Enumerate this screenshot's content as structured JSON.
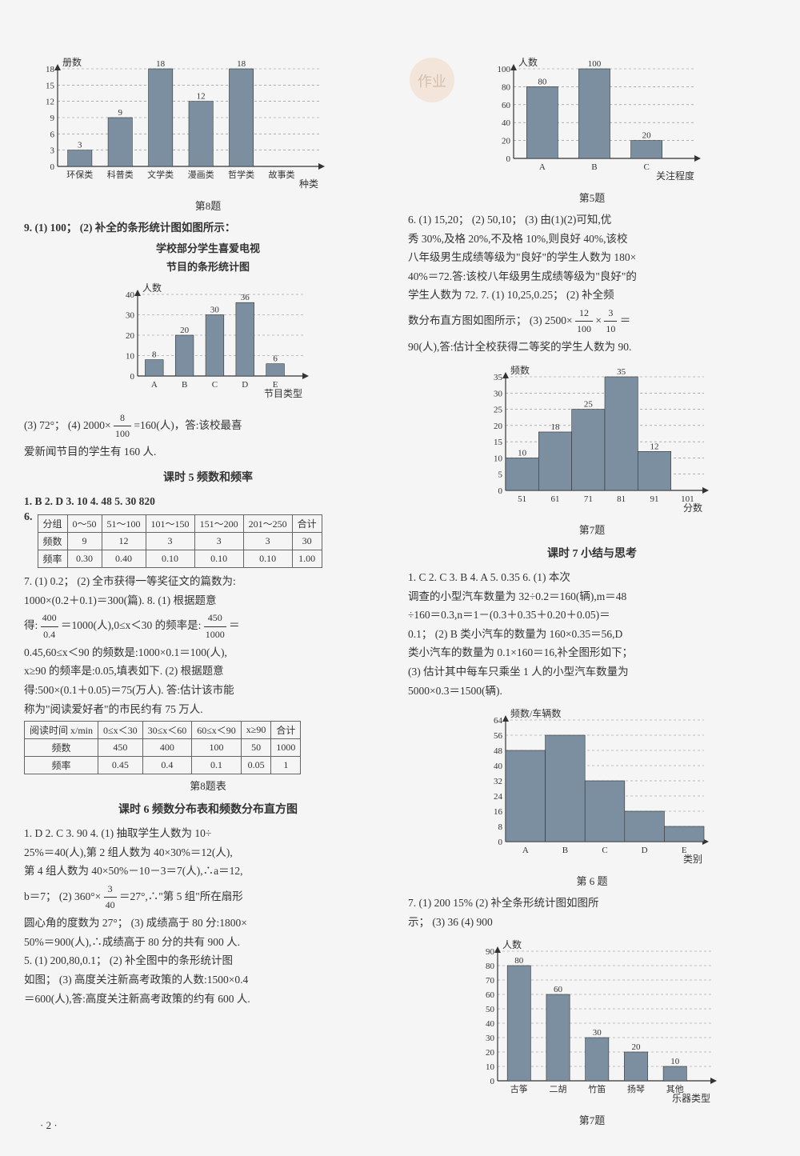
{
  "left": {
    "chart8": {
      "type": "bar",
      "categories": [
        "环保类",
        "科普类",
        "文学类",
        "漫画类",
        "哲学类",
        "故事类"
      ],
      "x_axis_suffix": "种类",
      "values": [
        3,
        9,
        18,
        12,
        18,
        null
      ],
      "value_labels": [
        "3",
        "9",
        "18",
        "12",
        "18",
        ""
      ],
      "yticks": [
        0,
        3,
        6,
        9,
        12,
        15,
        18
      ],
      "y_label": "册数",
      "bar_color": "#7b8fa0",
      "grid_color": "#888",
      "caption": "第8题"
    },
    "q9_line1": "9. (1) 100；  (2) 补全的条形统计图如图所示：",
    "q9_chart_title1": "学校部分学生喜爱电视",
    "q9_chart_title2": "节目的条形统计图",
    "chart9": {
      "type": "bar",
      "categories": [
        "A",
        "B",
        "C",
        "D",
        "E"
      ],
      "x_axis_suffix": "节目类型",
      "values": [
        8,
        20,
        30,
        36,
        6
      ],
      "value_labels": [
        "8",
        "20",
        "30",
        "36",
        "6"
      ],
      "yticks": [
        0,
        10,
        20,
        30,
        40
      ],
      "y_label": "人数",
      "bar_color": "#7b8fa0",
      "grid_color": "#888"
    },
    "q9_line2_a": "(3) 72°；  (4) 2000×",
    "q9_frac": {
      "num": "8",
      "den": "100"
    },
    "q9_line2_b": "=160(人)，答:该校最喜",
    "q9_line3": "爱新闻节目的学生有 160 人.",
    "section5_title": "课时 5   频数和频率",
    "s5_answers": "1. B  2. D  3. 10  4. 48  5. 30   820",
    "s5_q6_label": "6.",
    "table6": {
      "headers": [
        "分组",
        "0～50",
        "51～100",
        "101～150",
        "151～200",
        "201～250",
        "合计"
      ],
      "rows": [
        [
          "频数",
          "9",
          "12",
          "3",
          "3",
          "3",
          "30"
        ],
        [
          "频率",
          "0.30",
          "0.40",
          "0.10",
          "0.10",
          "0.10",
          "1.00"
        ]
      ]
    },
    "s5_q7_l1": "7. (1) 0.2；  (2) 全市获得一等奖征文的篇数为:",
    "s5_q7_l2": "1000×(0.2＋0.1)＝300(篇).  8. (1) 根据题意",
    "s5_q7_l3a": "得:",
    "s5_q7_frac1": {
      "num": "400",
      "den": "0.4"
    },
    "s5_q7_l3b": "＝1000(人),0≤x＜30 的频率是:",
    "s5_q7_frac2": {
      "num": "450",
      "den": "1000"
    },
    "s5_q7_l3c": "＝",
    "s5_q7_l4": "0.45,60≤x＜90 的频数是:1000×0.1＝100(人),",
    "s5_q7_l5": "x≥90 的频率是:0.05,填表如下.  (2) 根据题意",
    "s5_q7_l6": "得:500×(0.1＋0.05)＝75(万人). 答:估计该市能",
    "s5_q7_l7": "称为\"阅读爱好者\"的市民约有 75 万人.",
    "table8": {
      "headers": [
        "阅读时间 x/min",
        "0≤x＜30",
        "30≤x＜60",
        "60≤x＜90",
        "x≥90",
        "合计"
      ],
      "rows": [
        [
          "频数",
          "450",
          "400",
          "100",
          "50",
          "1000"
        ],
        [
          "频率",
          "0.45",
          "0.4",
          "0.1",
          "0.05",
          "1"
        ]
      ],
      "caption": "第8题表"
    },
    "section6_title": "课时 6   频数分布表和频数分布直方图",
    "s6_l1": "1. D  2. C  3. 90  4. (1) 抽取学生人数为 10÷",
    "s6_l2": "25%＝40(人),第 2 组人数为 40×30%＝12(人),",
    "s6_l3": "第 4 组人数为 40×50%－10－3＝7(人),∴a＝12,",
    "s6_l4a": "b＝7；  (2) 360°×",
    "s6_frac": {
      "num": "3",
      "den": "40"
    },
    "s6_l4b": "＝27°,∴\"第 5 组\"所在扇形",
    "s6_l5": "圆心角的度数为 27°；  (3) 成绩高于 80 分:1800×",
    "s6_l6": "50%＝900(人),∴成绩高于 80 分的共有 900 人.",
    "s6_l7": "5. (1) 200,80,0.1；  (2) 补全图中的条形统计图",
    "s6_l8": "如图；  (3) 高度关注新高考政策的人数:1500×0.4",
    "s6_l9": "＝600(人),答:高度关注新高考政策的约有 600 人."
  },
  "right": {
    "chart5": {
      "type": "bar",
      "categories": [
        "A",
        "B",
        "C"
      ],
      "x_axis_suffix": "关注程度",
      "values": [
        80,
        100,
        20
      ],
      "value_labels": [
        "80",
        "100",
        "20"
      ],
      "yticks": [
        0,
        20,
        40,
        60,
        80,
        100
      ],
      "y_label": "人数",
      "bar_color": "#7b8fa0",
      "grid_color": "#888",
      "caption": "第5题"
    },
    "r_l1": "6. (1) 15,20；  (2) 50,10；  (3) 由(1)(2)可知,优",
    "r_l2": "秀 30%,及格 20%,不及格 10%,则良好 40%,该校",
    "r_l3": "八年级男生成绩等级为\"良好\"的学生人数为 180×",
    "r_l4": "40%＝72.答:该校八年级男生成绩等级为\"良好\"的",
    "r_l5": "学生人数为 72.  7. (1) 10,25,0.25；  (2) 补全频",
    "r_l6a": "数分布直方图如图所示；  (3) 2500×",
    "r_frac1": {
      "num": "12",
      "den": "100"
    },
    "r_l6b": "×",
    "r_frac2": {
      "num": "3",
      "den": "10"
    },
    "r_l6c": "＝",
    "r_l7": "90(人),答:估计全校获得二等奖的学生人数为 90.",
    "chart7": {
      "type": "bar",
      "categories": [
        "51",
        "61",
        "71",
        "81",
        "91",
        "101"
      ],
      "x_axis_suffix": "分数",
      "values": [
        10,
        18,
        25,
        35,
        12,
        null
      ],
      "value_labels": [
        "10",
        "18",
        "25",
        "35",
        "12",
        ""
      ],
      "yticks": [
        0,
        5,
        10,
        15,
        20,
        25,
        30,
        35
      ],
      "y_label": "频数",
      "bar_color": "#7b8fa0",
      "grid_color": "#888",
      "caption": "第7题",
      "histogram": true
    },
    "section7_title": "课时 7   小结与思考",
    "s7_l1": "1. C  2. C  3. B  4. A  5. 0.35  6. (1) 本次",
    "s7_l2": "调查的小型汽车数量为 32÷0.2＝160(辆),m＝48",
    "s7_l3": "÷160＝0.3,n＝1－(0.3＋0.35＋0.20＋0.05)＝",
    "s7_l4": "0.1；  (2) B 类小汽车的数量为 160×0.35＝56,D",
    "s7_l5": "类小汽车的数量为 0.1×160＝16,补全图形如下；",
    "s7_l6": "(3) 估计其中每车只乘坐 1 人的小型汽车数量为",
    "s7_l7": "5000×0.3＝1500(辆).",
    "chart6": {
      "type": "bar",
      "categories": [
        "A",
        "B",
        "C",
        "D",
        "E"
      ],
      "x_axis_suffix": "类别",
      "values": [
        48,
        56,
        32,
        16,
        8
      ],
      "value_labels": [
        "",
        "",
        "",
        "",
        ""
      ],
      "yticks": [
        0,
        8,
        16,
        24,
        32,
        40,
        48,
        56,
        64
      ],
      "y_label": "频数/车辆数",
      "bar_color": "#7b8fa0",
      "grid_color": "#888",
      "caption": "第 6 题",
      "histogram": true
    },
    "s7b_l1": "7. (1) 200   15%   (2) 补全条形统计图如图所",
    "s7b_l2": "示；  (3) 36   (4) 900",
    "chart7b": {
      "type": "bar",
      "categories": [
        "古筝",
        "二胡",
        "竹笛",
        "扬琴",
        "其他"
      ],
      "x_axis_suffix": "乐器类型",
      "values": [
        80,
        60,
        30,
        20,
        10
      ],
      "value_labels": [
        "80",
        "60",
        "30",
        "20",
        "10"
      ],
      "yticks": [
        0,
        10,
        20,
        30,
        40,
        50,
        60,
        70,
        80,
        90
      ],
      "y_label": "人数",
      "bar_color": "#7b8fa0",
      "grid_color": "#888",
      "caption": "第7题"
    }
  },
  "page_num": "· 2 ·",
  "watermark_text": "作业"
}
